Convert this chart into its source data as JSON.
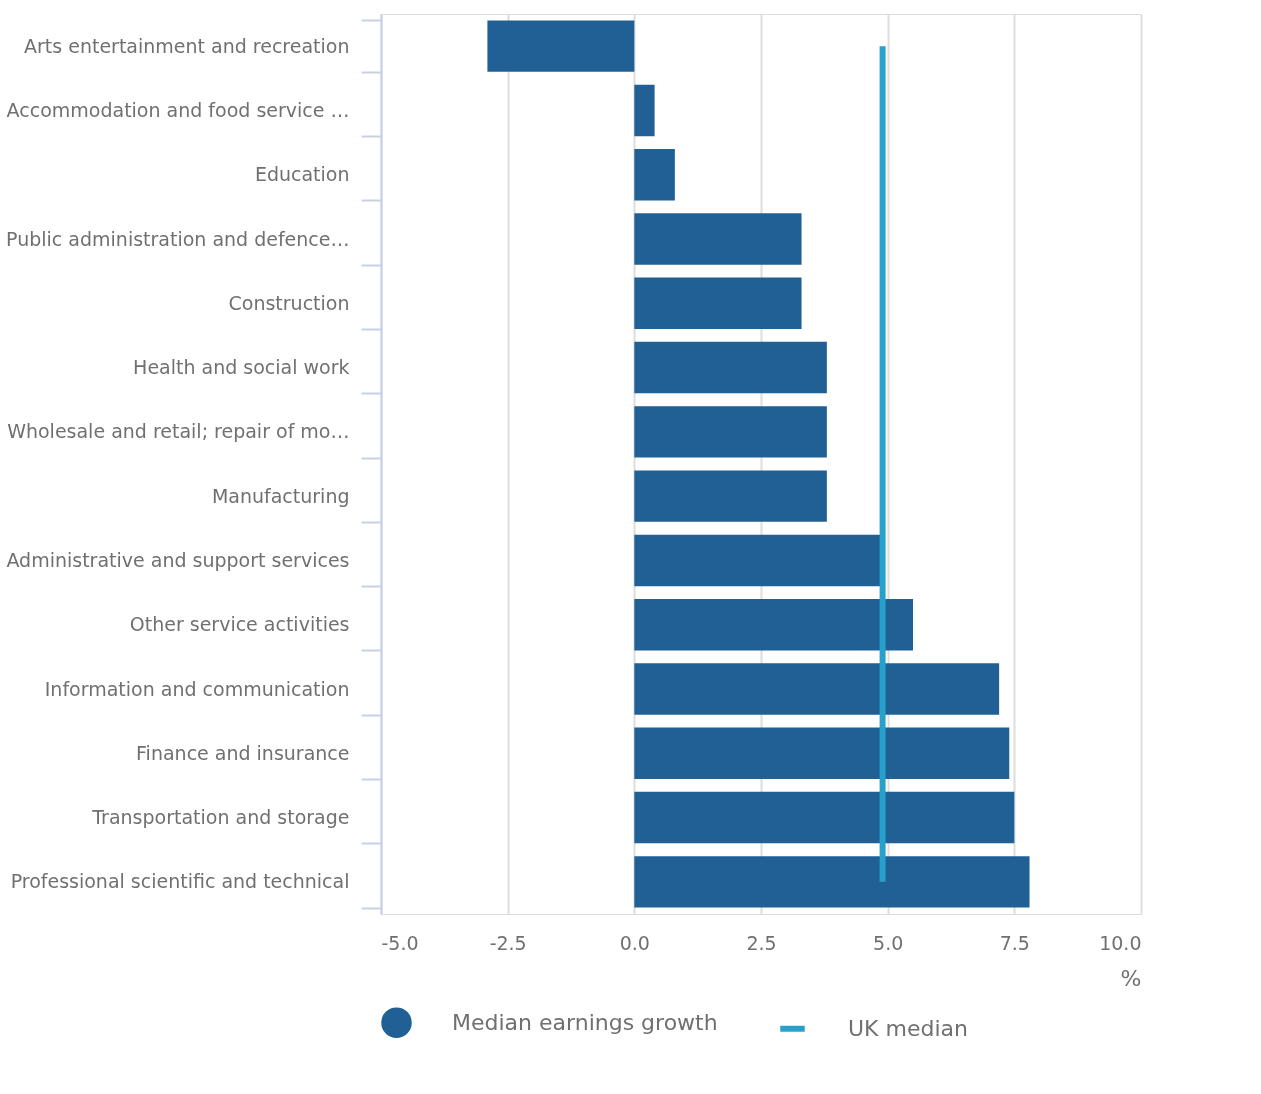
{
  "chart_data": {
    "type": "bar",
    "orientation": "horizontal",
    "categories": [
      "Arts entertainment and recreation",
      "Accommodation and food service …",
      "Education",
      "Public administration and defence…",
      "Construction",
      "Health and social work",
      "Wholesale and retail; repair of mo…",
      "Manufacturing",
      "Administrative and support services",
      "Other service activities",
      "Information and communication",
      "Finance and insurance",
      "Transportation and storage",
      "Professional scientific and technical"
    ],
    "series": [
      {
        "name": "Median earnings growth",
        "color": "#206095",
        "values": [
          -2.9,
          0.4,
          0.8,
          3.3,
          3.3,
          3.8,
          3.8,
          3.8,
          4.9,
          5.5,
          7.2,
          7.4,
          7.5,
          7.8
        ]
      }
    ],
    "ref_lines": [
      {
        "axis": "x",
        "value": 4.9,
        "label": "UK median",
        "color": "#27a0cc"
      }
    ],
    "xlim": [
      -5.0,
      10.0
    ],
    "xticks": [
      {
        "value": -5,
        "label": "-5.0"
      },
      {
        "value": -2.5,
        "label": "-2.5"
      },
      {
        "value": 0,
        "label": "0.0"
      },
      {
        "value": 2.5,
        "label": "2.5"
      },
      {
        "value": 5,
        "label": "5.0"
      },
      {
        "value": 7.5,
        "label": "7.5"
      },
      {
        "value": 10,
        "label": "10.0"
      }
    ],
    "xlabel": "%",
    "grid": "x",
    "legend": "bottom"
  }
}
